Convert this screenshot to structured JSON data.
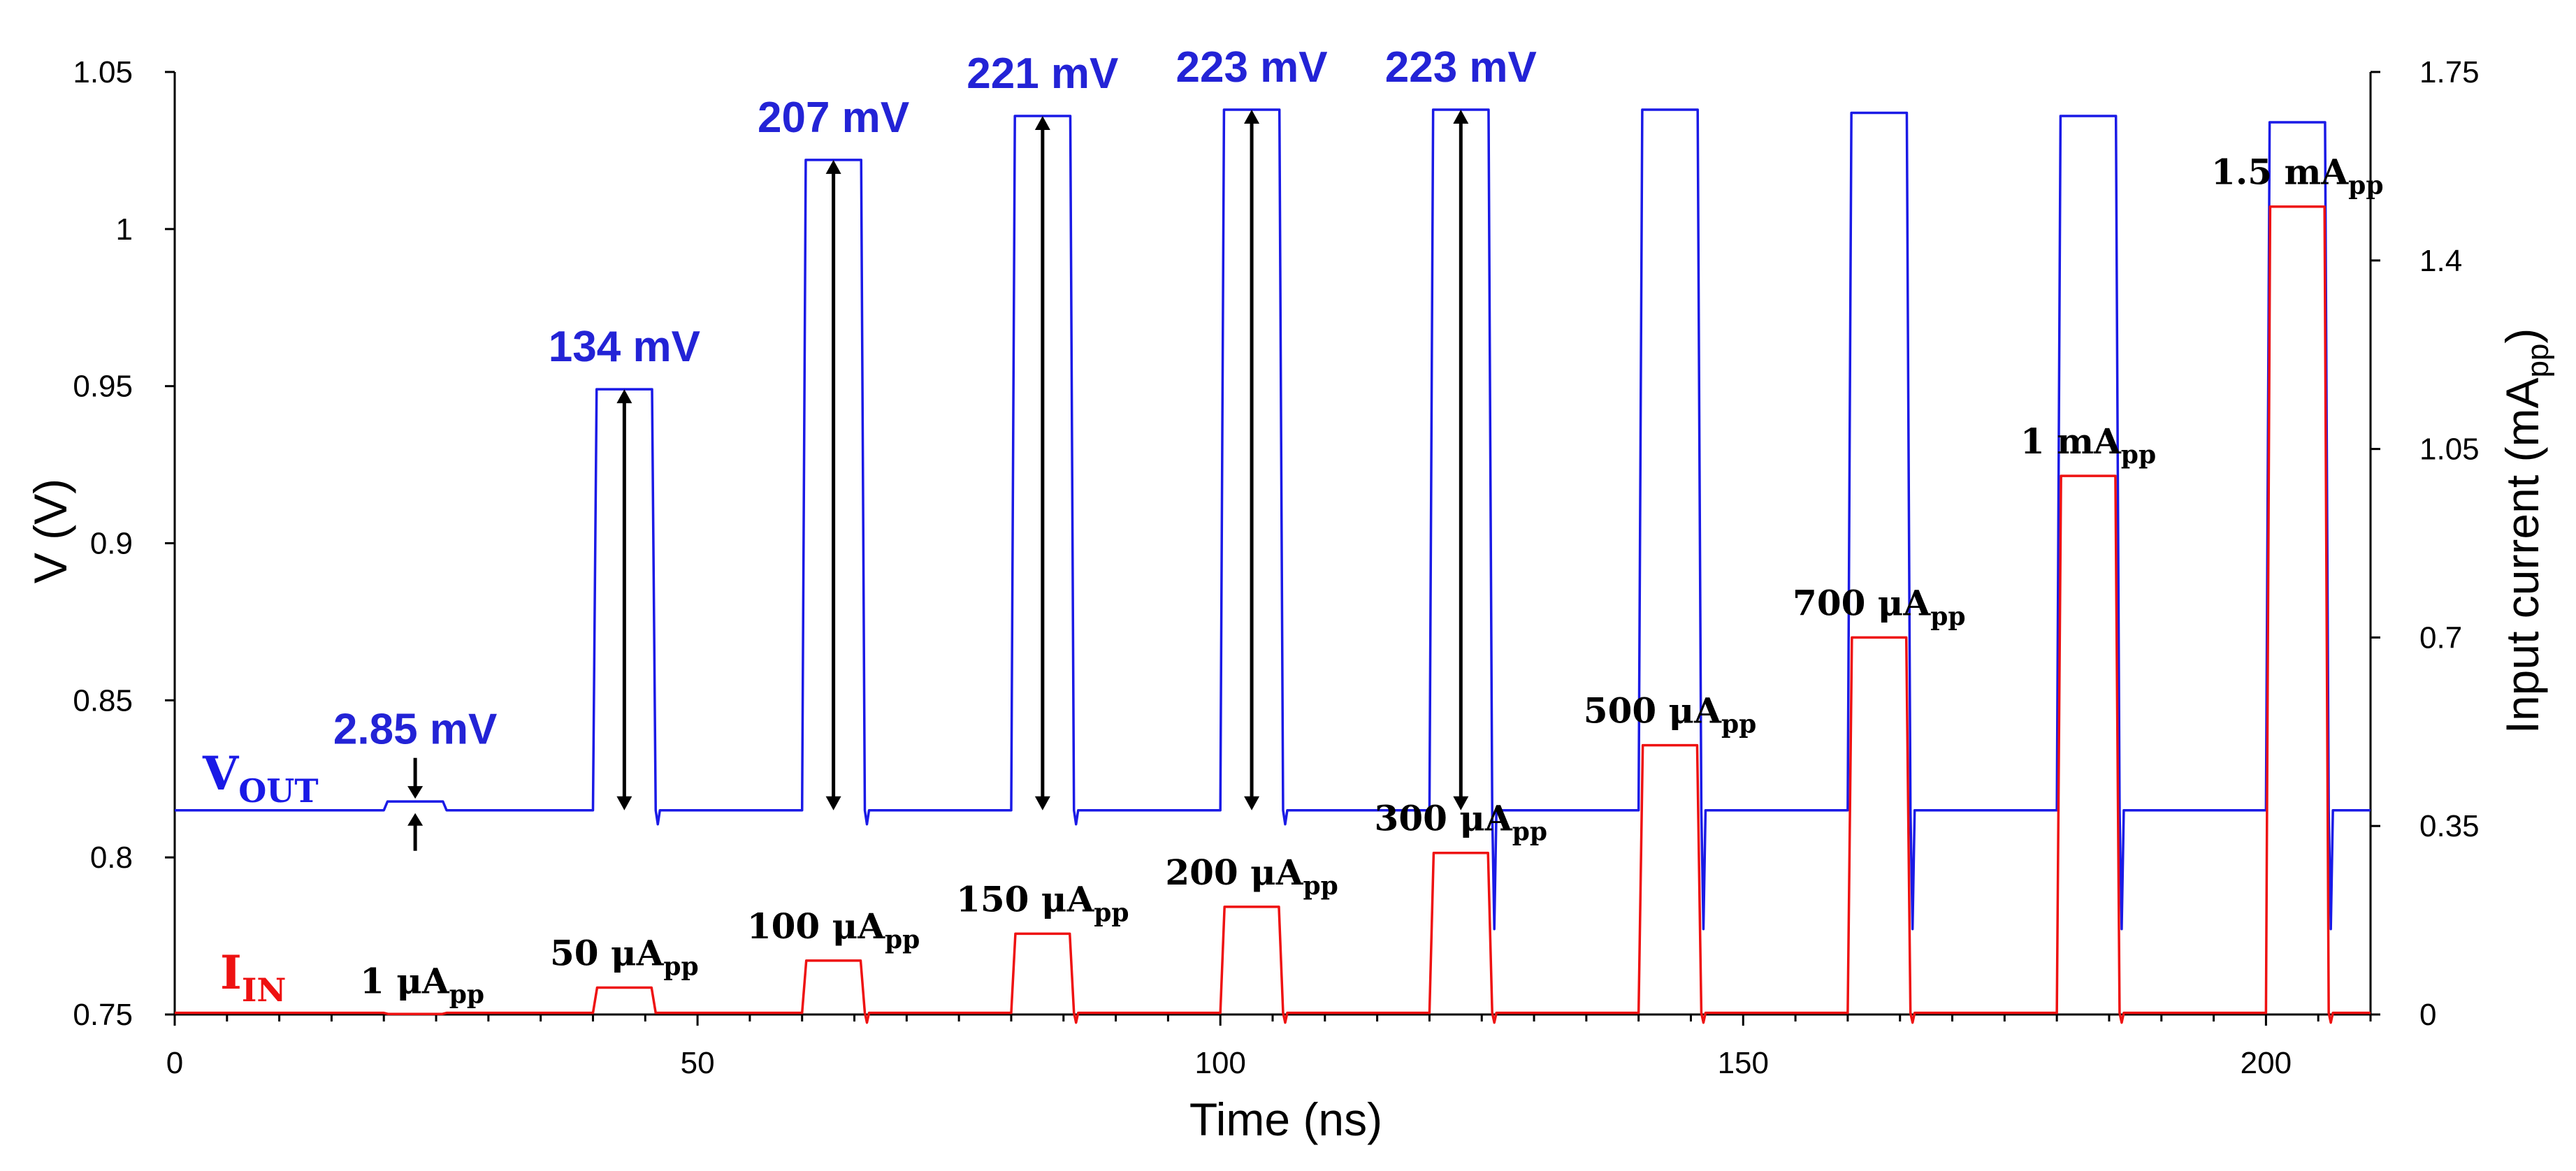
{
  "chart_data": {
    "type": "line",
    "title": "",
    "xlabel": "Time (ns)",
    "ylabel": "V (V)",
    "y2label_main": "Input current (mA",
    "y2label_sub": "pp",
    "y2label_end": ")",
    "xlim": [
      0,
      210
    ],
    "ylim": [
      0.75,
      1.05
    ],
    "y2lim": [
      0,
      1.75
    ],
    "xticks": [
      0,
      50,
      100,
      150,
      200
    ],
    "yticks": [
      0.75,
      0.8,
      0.85,
      0.9,
      0.95,
      1,
      1.05
    ],
    "yticklabels": [
      "0.75",
      "0.8",
      "0.85",
      "0.9",
      "0.95",
      "1",
      "1.05"
    ],
    "y2ticks": [
      0,
      0.35,
      0.7,
      1.05,
      1.4,
      1.75
    ],
    "y2ticklabels": [
      "0",
      "0.35",
      "0.7",
      "1.05",
      "1.4",
      "1.75"
    ],
    "colors": {
      "vout": "#1a1ae6",
      "iin": "#ee1111",
      "vlabel": "#2323d6",
      "arrow": "#000000"
    },
    "series": [
      {
        "name": "V",
        "sub": "OUT",
        "axis": "left",
        "baseline": 0.815
      },
      {
        "name": "I",
        "sub": "IN",
        "axis": "right",
        "baseline": 0.003
      }
    ],
    "pulses": [
      {
        "start": 20,
        "end": 26,
        "vout_high": 0.8178,
        "iin_high": 0.001,
        "vout_label": "2.85 mV",
        "iin_label": "1 μA",
        "iin_label_sub": "pp"
      },
      {
        "start": 40,
        "end": 46,
        "vout_high": 0.949,
        "iin_high": 0.05,
        "vout_label": "134 mV",
        "iin_label": "50 μA",
        "iin_label_sub": "pp"
      },
      {
        "start": 60,
        "end": 66,
        "vout_high": 1.022,
        "iin_high": 0.1,
        "vout_label": "207 mV",
        "iin_label": "100 μA",
        "iin_label_sub": "pp"
      },
      {
        "start": 80,
        "end": 86,
        "vout_high": 1.036,
        "iin_high": 0.15,
        "vout_label": "221 mV",
        "iin_label": "150 μA",
        "iin_label_sub": "pp"
      },
      {
        "start": 100,
        "end": 106,
        "vout_high": 1.038,
        "iin_high": 0.2,
        "vout_label": "223 mV",
        "iin_label": "200 μA",
        "iin_label_sub": "pp"
      },
      {
        "start": 120,
        "end": 126,
        "vout_high": 1.038,
        "iin_high": 0.3,
        "vout_label": "223 mV",
        "iin_label": "300 μA",
        "iin_label_sub": "pp"
      },
      {
        "start": 140,
        "end": 146,
        "vout_high": 1.038,
        "iin_high": 0.5,
        "vout_label": "",
        "iin_label": "500 μA",
        "iin_label_sub": "pp"
      },
      {
        "start": 160,
        "end": 166,
        "vout_high": 1.037,
        "iin_high": 0.7,
        "vout_label": "",
        "iin_label": "700 μA",
        "iin_label_sub": "pp"
      },
      {
        "start": 180,
        "end": 186,
        "vout_high": 1.036,
        "iin_high": 1.0,
        "vout_label": "",
        "iin_label": "1 mA",
        "iin_label_sub": "pp"
      },
      {
        "start": 200,
        "end": 206,
        "vout_high": 1.034,
        "iin_high": 1.5,
        "vout_label": "",
        "iin_label": "1.5 mA",
        "iin_label_sub": "pp"
      }
    ]
  }
}
